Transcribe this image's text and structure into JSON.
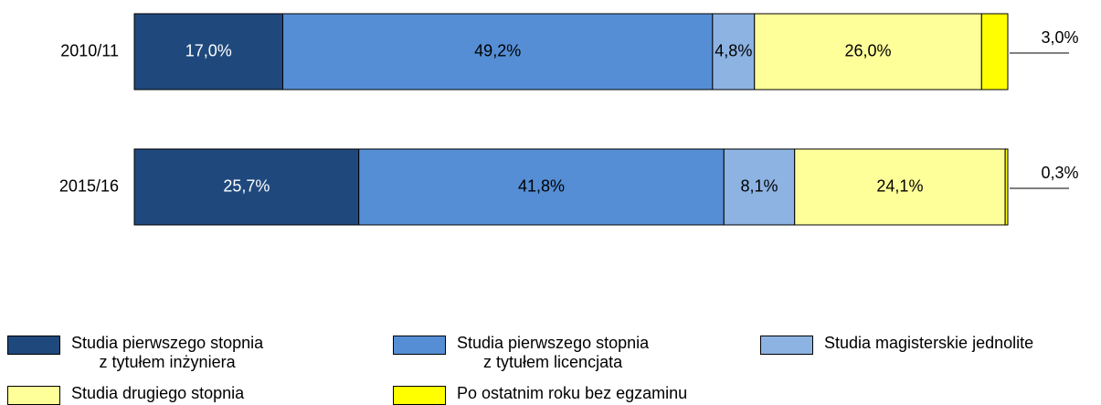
{
  "chart_data": {
    "type": "stacked-bar-horizontal",
    "categories": [
      "2010/11",
      "2015/16"
    ],
    "series": [
      {
        "name": "Studia pierwszego stopnia\nz tytułem inżyniera",
        "color": "#1f497d",
        "values": [
          17.0,
          25.7
        ],
        "value_labels": [
          "17,0%",
          "25,7%"
        ]
      },
      {
        "name": "Studia pierwszego stopnia\nz tytułem licencjata",
        "color": "#558ed5",
        "values": [
          49.2,
          41.8
        ],
        "value_labels": [
          "49,2%",
          "41,8%"
        ]
      },
      {
        "name": "Studia magisterskie jednolite",
        "color": "#8db3e2",
        "values": [
          4.8,
          8.1
        ],
        "value_labels": [
          "4,8%",
          "8,1%"
        ]
      },
      {
        "name": "Studia drugiego stopnia",
        "color": "#ffff99",
        "values": [
          26.0,
          24.1
        ],
        "value_labels": [
          "26,0%",
          "24,1%"
        ]
      },
      {
        "name": "Po ostatnim roku bez egzaminu",
        "color": "#ffff00",
        "values": [
          3.0,
          0.3
        ],
        "value_labels": [
          "3,0%",
          "0,3%"
        ]
      }
    ]
  }
}
